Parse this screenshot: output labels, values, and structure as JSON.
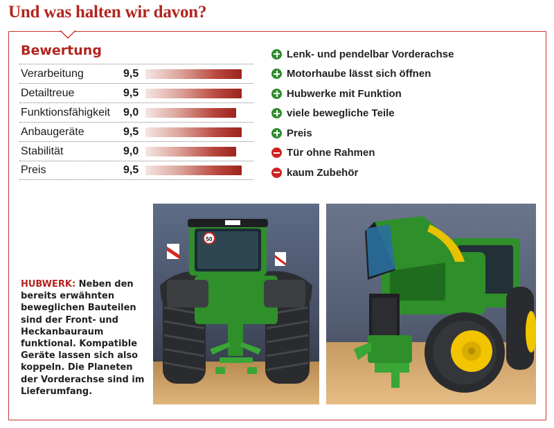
{
  "headline": "Und was halten wir davon?",
  "rating": {
    "title": "Bewertung",
    "rows": [
      {
        "label": "Verarbeitung",
        "score": "9,5",
        "fraction": 0.95
      },
      {
        "label": "Detailtreue",
        "score": "9,5",
        "fraction": 0.95
      },
      {
        "label": "Funktionsfähigkeit",
        "score": "9,0",
        "fraction": 0.9
      },
      {
        "label": "Anbaugeräte",
        "score": "9,5",
        "fraction": 0.95
      },
      {
        "label": "Stabilität",
        "score": "9,0",
        "fraction": 0.9
      },
      {
        "label": "Preis",
        "score": "9,5",
        "fraction": 0.95
      }
    ]
  },
  "pros_cons": [
    {
      "type": "plus",
      "icon": "plus-circle-icon",
      "text": "Lenk- und pendelbar Vorderachse"
    },
    {
      "type": "plus",
      "icon": "plus-circle-icon",
      "text": "Motorhaube lässt sich öffnen"
    },
    {
      "type": "plus",
      "icon": "plus-circle-icon",
      "text": "Hubwerke mit Funktion"
    },
    {
      "type": "plus",
      "icon": "plus-circle-icon",
      "text": "viele bewegliche Teile"
    },
    {
      "type": "plus",
      "icon": "plus-circle-icon",
      "text": "Preis"
    },
    {
      "type": "minus",
      "icon": "minus-circle-icon",
      "text": "Tür ohne Rahmen"
    },
    {
      "type": "minus",
      "icon": "minus-circle-icon",
      "text": "kaum Zubehör"
    }
  ],
  "caption": {
    "kicker": "HUBWERK:",
    "text": " Neben den bereits erwähnten beweglichen Bauteilen sind der Front- und Heckanbauraum funktional. Kompatible Geräte lassen sich also koppeln. Die Planeten der Vorderachse sind im Lieferumfang."
  },
  "photos": {
    "left": {
      "plate_text": "50"
    }
  },
  "colors": {
    "accent_red": "#b3241f",
    "plus_green": "#2e8b2e",
    "minus_red": "#cf2320",
    "tractor_green": "#2f8f2a",
    "rim_yellow": "#f2c500"
  }
}
